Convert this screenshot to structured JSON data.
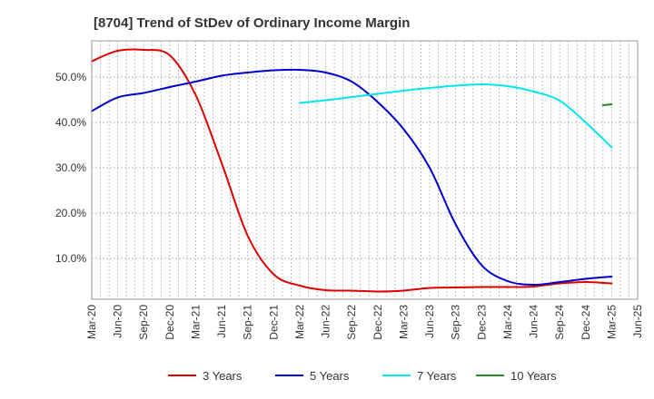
{
  "chart_data": {
    "type": "line",
    "title": "[8704]  Trend of StDev of Ordinary Income Margin",
    "xlabel": "",
    "ylabel": "",
    "x_ticks": [
      "Mar-20",
      "Jun-20",
      "Sep-20",
      "Dec-20",
      "Mar-21",
      "Jun-21",
      "Sep-21",
      "Dec-21",
      "Mar-22",
      "Jun-22",
      "Sep-22",
      "Dec-22",
      "Mar-23",
      "Jun-23",
      "Sep-23",
      "Dec-23",
      "Mar-24",
      "Jun-24",
      "Sep-24",
      "Dec-24",
      "Mar-25",
      "Jun-25"
    ],
    "y_ticks": [
      "10.0%",
      "20.0%",
      "30.0%",
      "40.0%",
      "50.0%"
    ],
    "y_tick_values": [
      10,
      20,
      30,
      40,
      50
    ],
    "ylim": [
      1,
      58
    ],
    "grid": true,
    "legend_position": "bottom",
    "series": [
      {
        "name": "3 Years",
        "color": "#dd0000",
        "points": [
          [
            "Mar-20",
            53.5
          ],
          [
            "Jun-20",
            55.8
          ],
          [
            "Sep-20",
            56.0
          ],
          [
            "Dec-20",
            54.8
          ],
          [
            "Mar-21",
            46.0
          ],
          [
            "Jun-21",
            31.0
          ],
          [
            "Sep-21",
            15.0
          ],
          [
            "Dec-21",
            6.5
          ],
          [
            "Mar-22",
            4.0
          ],
          [
            "Jun-22",
            3.0
          ],
          [
            "Sep-22",
            2.9
          ],
          [
            "Dec-22",
            2.7
          ],
          [
            "Mar-23",
            2.9
          ],
          [
            "Jun-23",
            3.5
          ],
          [
            "Sep-23",
            3.6
          ],
          [
            "Dec-23",
            3.7
          ],
          [
            "Mar-24",
            3.7
          ],
          [
            "Jun-24",
            3.8
          ],
          [
            "Sep-24",
            4.5
          ],
          [
            "Dec-24",
            4.8
          ],
          [
            "Mar-25",
            4.5
          ]
        ]
      },
      {
        "name": "5 Years",
        "color": "#0000cc",
        "points": [
          [
            "Mar-20",
            42.5
          ],
          [
            "Jun-20",
            45.5
          ],
          [
            "Sep-20",
            46.5
          ],
          [
            "Dec-20",
            47.8
          ],
          [
            "Mar-21",
            49.0
          ],
          [
            "Jun-21",
            50.3
          ],
          [
            "Sep-21",
            51.0
          ],
          [
            "Dec-21",
            51.5
          ],
          [
            "Mar-22",
            51.6
          ],
          [
            "Jun-22",
            51.0
          ],
          [
            "Sep-22",
            49.0
          ],
          [
            "Dec-22",
            44.5
          ],
          [
            "Mar-23",
            38.5
          ],
          [
            "Jun-23",
            30.0
          ],
          [
            "Sep-23",
            17.5
          ],
          [
            "Dec-23",
            8.5
          ],
          [
            "Mar-24",
            5.0
          ],
          [
            "Jun-24",
            4.2
          ],
          [
            "Sep-24",
            4.8
          ],
          [
            "Dec-24",
            5.5
          ],
          [
            "Mar-25",
            6.0
          ]
        ]
      },
      {
        "name": "7 Years",
        "color": "#00e5ee",
        "points": [
          [
            "Mar-22",
            44.3
          ],
          [
            "Jun-22",
            44.9
          ],
          [
            "Sep-22",
            45.6
          ],
          [
            "Dec-22",
            46.3
          ],
          [
            "Mar-23",
            47.0
          ],
          [
            "Jun-23",
            47.6
          ],
          [
            "Sep-23",
            48.1
          ],
          [
            "Dec-23",
            48.4
          ],
          [
            "Mar-24",
            48.0
          ],
          [
            "Jun-24",
            46.8
          ],
          [
            "Sep-24",
            44.8
          ],
          [
            "Dec-24",
            40.0
          ],
          [
            "Mar-25",
            34.5
          ]
        ]
      },
      {
        "name": "10 Years",
        "color": "#228b22",
        "points": [
          [
            "Feb-25",
            43.8
          ],
          [
            "Mar-25",
            44.0
          ]
        ]
      }
    ]
  }
}
